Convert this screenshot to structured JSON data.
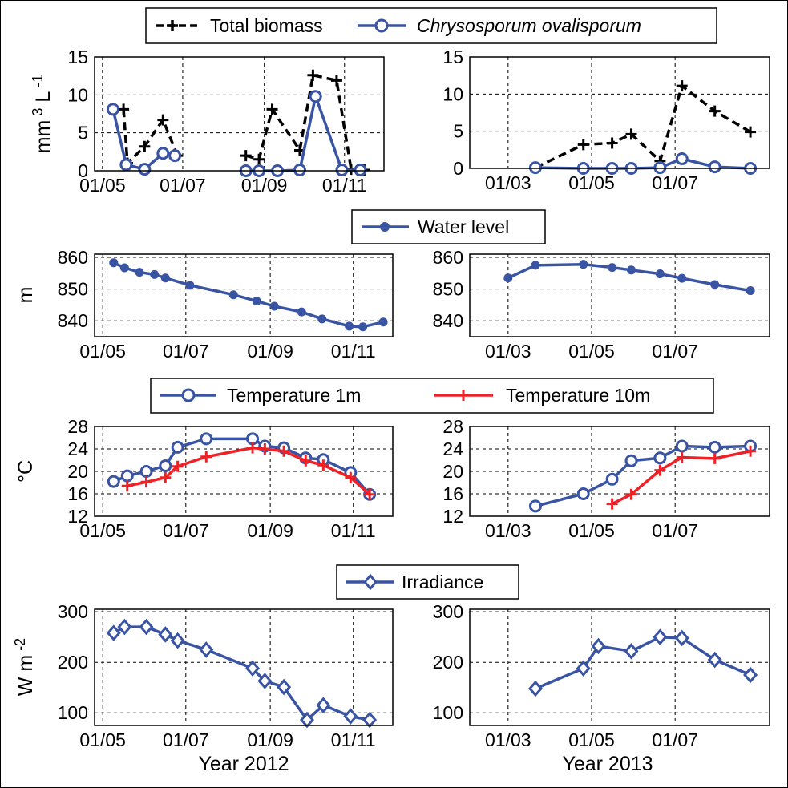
{
  "chart_data": [
    {
      "type": "line",
      "ylabel": "mm 3 L -1",
      "xticks": [
        "01/05",
        "01/07",
        "01/09",
        "01/11"
      ],
      "yticks": [
        "0",
        "5",
        "10",
        "15"
      ],
      "ylim": [
        0,
        15
      ],
      "series": [
        {
          "name": "Total biomass",
          "color": "#000000",
          "style": "dash",
          "marker": "plus",
          "x": [
            "2012-05-17",
            "2012-05-20",
            "2012-06-02",
            "2012-06-16",
            "2012-06-27",
            "null",
            "2012-08-18",
            "2012-08-28",
            "2012-09-07",
            "2012-09-28",
            "2012-10-08",
            "2012-10-26",
            "2012-11-06",
            "2012-11-16"
          ],
          "y": [
            8.1,
            1.0,
            3.2,
            6.7,
            2.0,
            null,
            2.0,
            1.5,
            8.1,
            2.7,
            12.6,
            11.9,
            0.2,
            0.1
          ]
        },
        {
          "name": "Chrysosporum ovalisporum",
          "color": "#3a54a4",
          "style": "solid",
          "marker": "circle",
          "x": [
            "2012-05-09",
            "2012-05-19",
            "2012-06-02",
            "2012-06-16",
            "2012-06-25",
            "null",
            "2012-08-18",
            "2012-08-28",
            "2012-09-11",
            "2012-09-28",
            "2012-10-10",
            "2012-10-30",
            "2012-11-13"
          ],
          "y": [
            8.1,
            0.8,
            0.2,
            2.3,
            2.0,
            null,
            0.0,
            0.0,
            0.0,
            0.1,
            9.8,
            0.1,
            0.1
          ]
        }
      ]
    },
    {
      "type": "line",
      "xticks": [
        "01/03",
        "01/05",
        "01/07"
      ],
      "yticks": [
        "0",
        "5",
        "10",
        "15"
      ],
      "ylim": [
        0,
        15
      ],
      "series": [
        {
          "name": "Total biomass",
          "x": [
            "2013-03-21",
            "2013-04-25",
            "2013-05-16",
            "2013-05-30",
            "2013-06-20",
            "2013-07-06",
            "2013-07-30",
            "2013-08-25"
          ],
          "y": [
            0.1,
            3.2,
            3.4,
            4.6,
            1.0,
            11.1,
            7.7,
            4.9
          ]
        },
        {
          "name": "Chrysosporum ovalisporum",
          "x": [
            "2013-03-21",
            "2013-04-25",
            "2013-05-16",
            "2013-05-30",
            "2013-06-20",
            "2013-07-06",
            "2013-07-30",
            "2013-08-25"
          ],
          "y": [
            0.1,
            0.0,
            0.0,
            0.0,
            0.1,
            1.3,
            0.2,
            0.0
          ]
        }
      ]
    },
    {
      "type": "line",
      "ylabel": "m",
      "xticks": [
        "01/05",
        "01/07",
        "01/09",
        "01/11"
      ],
      "yticks": [
        "840",
        "850",
        "860"
      ],
      "ylim": [
        835,
        861
      ],
      "series": [
        {
          "name": "Water level",
          "color": "#3a54a4",
          "marker": "dot",
          "x": [
            "2012-05-09",
            "2012-05-17",
            "2012-05-28",
            "2012-06-08",
            "2012-06-16",
            "2012-07-04",
            "2012-08-05",
            "2012-08-22",
            "2012-09-04",
            "2012-09-24",
            "2012-10-09",
            "2012-10-29",
            "2012-11-08",
            "2012-11-23"
          ],
          "y": [
            858.3,
            856.7,
            855.3,
            854.6,
            853.5,
            851.2,
            848.2,
            846.2,
            844.6,
            842.8,
            840.6,
            838.3,
            838.1,
            839.6
          ]
        }
      ]
    },
    {
      "type": "line",
      "xticks": [
        "01/03",
        "01/05",
        "01/07"
      ],
      "yticks": [
        "840",
        "850",
        "860"
      ],
      "ylim": [
        835,
        861
      ],
      "series": [
        {
          "name": "Water level",
          "x": [
            "2013-03-01",
            "2013-03-21",
            "2013-04-25",
            "2013-05-16",
            "2013-05-30",
            "2013-06-20",
            "2013-07-06",
            "2013-07-30",
            "2013-08-25"
          ],
          "y": [
            853.5,
            857.5,
            857.8,
            856.8,
            856.0,
            854.8,
            853.4,
            851.4,
            849.5
          ]
        }
      ]
    },
    {
      "type": "line",
      "ylabel": "°C",
      "xticks": [
        "01/05",
        "01/07",
        "01/09",
        "01/11"
      ],
      "yticks": [
        "12",
        "16",
        "20",
        "24",
        "28"
      ],
      "ylim": [
        12,
        28
      ],
      "series": [
        {
          "name": "Temperature 1m",
          "color": "#3a54a4",
          "marker": "circle",
          "x": [
            "2012-05-09",
            "2012-05-19",
            "2012-06-02",
            "2012-06-16",
            "2012-06-25",
            "2012-07-16",
            "2012-08-19",
            "2012-08-28",
            "2012-09-11",
            "2012-09-27",
            "2012-10-10",
            "2012-10-30",
            "2012-11-13"
          ],
          "y": [
            18.2,
            19.2,
            20.0,
            21.0,
            24.3,
            25.8,
            25.8,
            24.5,
            24.2,
            22.4,
            22.1,
            19.8,
            15.9
          ]
        },
        {
          "name": "Temperature 10m",
          "color": "#ee2127",
          "marker": "plus",
          "x": [
            "2012-05-19",
            "2012-06-02",
            "2012-06-16",
            "2012-06-25",
            "2012-07-16",
            "2012-08-19",
            "2012-08-28",
            "2012-09-11",
            "2012-09-27",
            "2012-10-10",
            "2012-10-30",
            "2012-11-13"
          ],
          "y": [
            17.4,
            18.1,
            18.9,
            20.9,
            22.6,
            24.2,
            24.0,
            23.6,
            21.9,
            21.1,
            18.9,
            15.9
          ]
        }
      ]
    },
    {
      "type": "line",
      "xticks": [
        "01/03",
        "01/05",
        "01/07"
      ],
      "yticks": [
        "12",
        "16",
        "20",
        "24",
        "28"
      ],
      "ylim": [
        12,
        28
      ],
      "series": [
        {
          "name": "Temperature 1m",
          "x": [
            "2013-03-21",
            "2013-04-25",
            "2013-05-16",
            "2013-05-30",
            "2013-06-20",
            "2013-07-06",
            "2013-07-30",
            "2013-08-25"
          ],
          "y": [
            13.8,
            16.0,
            18.6,
            21.9,
            22.4,
            24.5,
            24.3,
            24.5
          ]
        },
        {
          "name": "Temperature 10m",
          "x": [
            "2013-05-16",
            "2013-05-30",
            "2013-06-20",
            "2013-07-06",
            "2013-07-30",
            "2013-08-25"
          ],
          "y": [
            14.2,
            15.9,
            20.2,
            22.5,
            22.3,
            23.6
          ]
        }
      ]
    },
    {
      "type": "line",
      "ylabel": "W m -2",
      "xlabel": "Year 2012",
      "xticks": [
        "01/05",
        "01/07",
        "01/09",
        "01/11"
      ],
      "yticks": [
        "100",
        "200",
        "300"
      ],
      "ylim": [
        75,
        305
      ],
      "series": [
        {
          "name": "Irradiance",
          "color": "#3a54a4",
          "marker": "diamond",
          "x": [
            "2012-05-09",
            "2012-05-17",
            "2012-06-02",
            "2012-06-16",
            "2012-06-25",
            "2012-07-16",
            "2012-08-19",
            "2012-08-28",
            "2012-09-11",
            "2012-09-28",
            "2012-10-10",
            "2012-10-30",
            "2012-11-13"
          ],
          "y": [
            258,
            270,
            270,
            255,
            243,
            225,
            188,
            163,
            151,
            86,
            115,
            93,
            86
          ]
        }
      ]
    },
    {
      "type": "line",
      "xlabel": "Year 2013",
      "xticks": [
        "01/03",
        "01/05",
        "01/07"
      ],
      "yticks": [
        "100",
        "200",
        "300"
      ],
      "ylim": [
        75,
        305
      ],
      "series": [
        {
          "name": "Irradiance",
          "x": [
            "2013-03-21",
            "2013-04-25",
            "2013-05-06",
            "2013-05-30",
            "2013-06-20",
            "2013-07-06",
            "2013-07-30",
            "2013-08-25"
          ],
          "y": [
            148,
            188,
            232,
            222,
            250,
            248,
            205,
            175
          ]
        }
      ]
    }
  ],
  "legends": {
    "biomass": {
      "total": "Total biomass",
      "chryso": "Chrysosporum ovalisporum"
    },
    "water": {
      "label": "Water level"
    },
    "temp": {
      "t1": "Temperature 1m",
      "t10": "Temperature 10m"
    },
    "irr": {
      "label": "Irradiance"
    }
  },
  "colors": {
    "blue": "#3a54a4",
    "red": "#ee2127",
    "black": "#000000"
  }
}
